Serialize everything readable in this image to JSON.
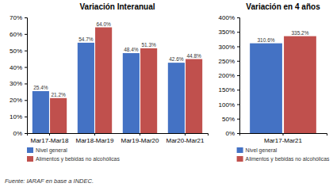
{
  "chart_data": [
    {
      "type": "bar",
      "title": "Variación Interanual",
      "categories": [
        "Mar17-Mar18",
        "Mar18-Mar19",
        "Mar19-Mar20",
        "Mar20-Mar21"
      ],
      "series": [
        {
          "name": "Nivel general",
          "color": "#4472C4",
          "values": [
            25.4,
            54.7,
            48.4,
            42.6
          ],
          "value_labels": [
            "25.4%",
            "54.7%",
            "48.4%",
            "42.6%"
          ]
        },
        {
          "name": "Alimentos y bebidas no alcohólicas",
          "color": "#C0504D",
          "values": [
            21.2,
            64.0,
            51.3,
            44.8
          ],
          "value_labels": [
            "21.2%",
            "64.0%",
            "51.3%",
            "44.8%"
          ]
        }
      ],
      "ylim": [
        0,
        70
      ],
      "yticks": [
        {
          "value": 0,
          "label": "0%"
        },
        {
          "value": 10,
          "label": "10%"
        },
        {
          "value": 20,
          "label": "20%"
        },
        {
          "value": 30,
          "label": "30%"
        },
        {
          "value": 40,
          "label": "40%"
        },
        {
          "value": 50,
          "label": "50%"
        },
        {
          "value": 60,
          "label": "60%"
        },
        {
          "value": 70,
          "label": "70%"
        }
      ],
      "grid": false,
      "legend": "bottom",
      "data_labels": true,
      "annotations": [
        "Fuente: IARAF en base a INDEC."
      ]
    },
    {
      "type": "bar",
      "title": "Variación en 4 años",
      "categories": [
        "Mar17-Mar21"
      ],
      "series": [
        {
          "name": "Nivel general",
          "color": "#4472C4",
          "values": [
            310.6
          ],
          "value_labels": [
            "310.6%"
          ]
        },
        {
          "name": "Alimentos y bebidas no alcohólicas",
          "color": "#C0504D",
          "values": [
            335.2
          ],
          "value_labels": [
            "335.2%"
          ]
        }
      ],
      "ylim": [
        0,
        400
      ],
      "yticks": [
        {
          "value": 0,
          "label": "0%"
        },
        {
          "value": 50,
          "label": "50%"
        },
        {
          "value": 100,
          "label": "100%"
        },
        {
          "value": 150,
          "label": "150%"
        },
        {
          "value": 200,
          "label": "200%"
        },
        {
          "value": 250,
          "label": "250%"
        },
        {
          "value": 300,
          "label": "300%"
        },
        {
          "value": 350,
          "label": "350%"
        },
        {
          "value": 400,
          "label": "400%"
        }
      ],
      "grid": false,
      "legend": "bottom",
      "data_labels": true
    }
  ]
}
